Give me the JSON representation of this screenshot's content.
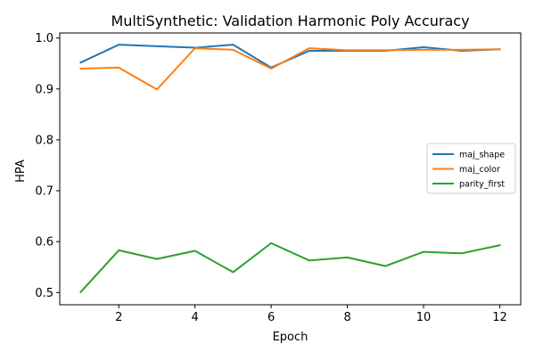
{
  "chart_data": {
    "type": "line",
    "title": "MultiSynthetic: Validation Harmonic Poly Accuracy",
    "xlabel": "Epoch",
    "ylabel": "HPA",
    "x": [
      1,
      2,
      3,
      4,
      5,
      6,
      7,
      8,
      9,
      10,
      11,
      12
    ],
    "xlim": [
      0.45,
      12.55
    ],
    "ylim": [
      0.476,
      1.01
    ],
    "xticks": [
      2,
      4,
      6,
      8,
      10,
      12
    ],
    "xtick_labels": [
      "2",
      "4",
      "6",
      "8",
      "10",
      "12"
    ],
    "yticks": [
      0.5,
      0.6,
      0.7,
      0.8,
      0.9,
      1.0
    ],
    "ytick_labels": [
      "0.5",
      "0.6",
      "0.7",
      "0.8",
      "0.9",
      "1.0"
    ],
    "grid": false,
    "legend_position": "center-right",
    "series": [
      {
        "name": "maj_shape",
        "color": "#1f77b4",
        "values": [
          0.952,
          0.987,
          0.984,
          0.981,
          0.987,
          0.942,
          0.975,
          0.975,
          0.975,
          0.982,
          0.975,
          0.978
        ]
      },
      {
        "name": "maj_color",
        "color": "#ff7f0e",
        "values": [
          0.94,
          0.942,
          0.899,
          0.98,
          0.977,
          0.94,
          0.98,
          0.976,
          0.976,
          0.977,
          0.977,
          0.978
        ]
      },
      {
        "name": "parity_first",
        "color": "#2ca02c",
        "values": [
          0.501,
          0.583,
          0.566,
          0.582,
          0.54,
          0.597,
          0.563,
          0.569,
          0.552,
          0.58,
          0.577,
          0.593
        ]
      }
    ]
  }
}
